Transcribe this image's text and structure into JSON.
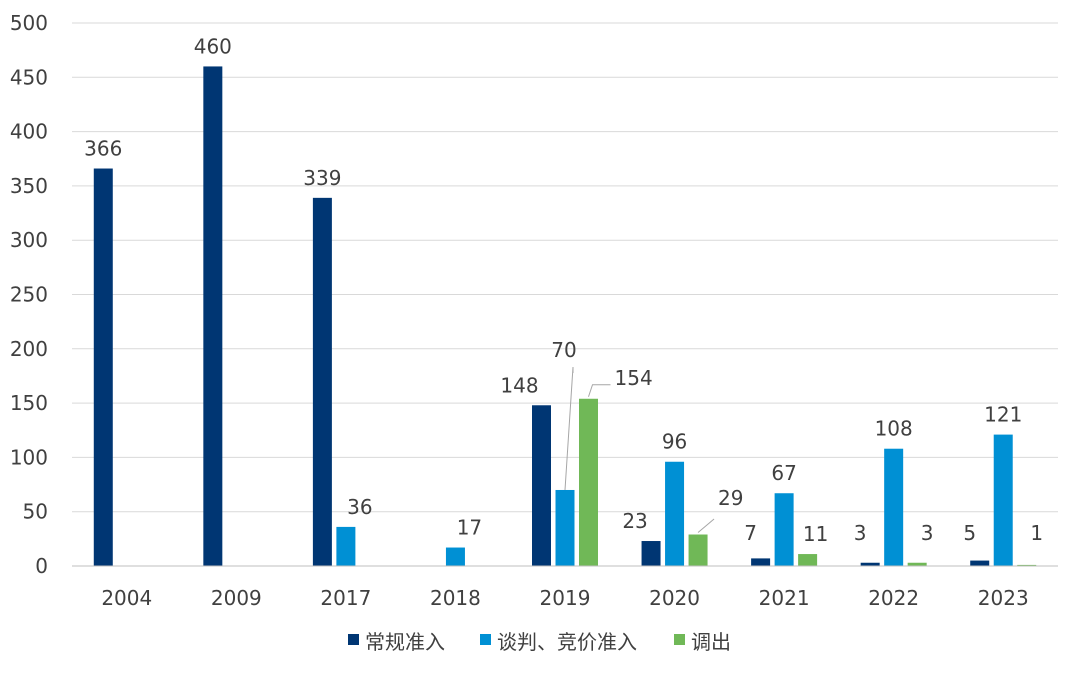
{
  "chart_data": {
    "type": "bar",
    "categories": [
      "2004",
      "2009",
      "2017",
      "2018",
      "2019",
      "2020",
      "2021",
      "2022",
      "2023"
    ],
    "series": [
      {
        "name": "常规准入",
        "color": "#003673",
        "values": [
          366,
          460,
          339,
          null,
          148,
          23,
          7,
          3,
          5
        ]
      },
      {
        "name": "谈判、竞价准入",
        "color": "#0090d4",
        "values": [
          null,
          null,
          36,
          17,
          70,
          96,
          67,
          108,
          121
        ]
      },
      {
        "name": "调出",
        "color": "#70b857",
        "values": [
          null,
          null,
          null,
          null,
          154,
          29,
          11,
          3,
          1
        ]
      }
    ],
    "ylim": [
      0,
      500
    ],
    "yticks": [
      0,
      50,
      100,
      150,
      200,
      250,
      300,
      350,
      400,
      450,
      500
    ],
    "grid": true,
    "legend_position": "bottom"
  }
}
